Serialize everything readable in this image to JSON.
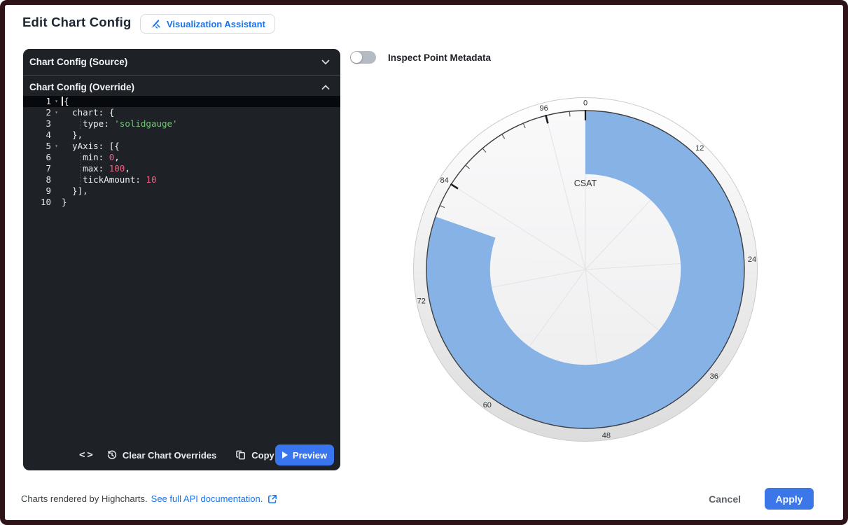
{
  "header": {
    "title": "Edit Chart Config",
    "assistant_button": "Visualization Assistant"
  },
  "editor": {
    "source_section": {
      "title": "Chart Config (Source)",
      "state": "collapsed"
    },
    "override_section": {
      "title": "Chart Config (Override)",
      "state": "expanded"
    },
    "code_lines": [
      {
        "num": "1",
        "fold": true,
        "active": true,
        "cursor": true,
        "segs": [
          {
            "c": "p",
            "t": "{"
          }
        ]
      },
      {
        "num": "2",
        "fold": true,
        "segs": [
          {
            "c": "p",
            "t": "  chart: {"
          }
        ]
      },
      {
        "num": "3",
        "guide": true,
        "segs": [
          {
            "c": "p",
            "t": "    type: "
          },
          {
            "c": "s",
            "t": "'solidgauge'"
          }
        ]
      },
      {
        "num": "4",
        "segs": [
          {
            "c": "p",
            "t": "  },"
          }
        ]
      },
      {
        "num": "5",
        "fold": true,
        "segs": [
          {
            "c": "p",
            "t": "  yAxis: [{"
          }
        ]
      },
      {
        "num": "6",
        "guide": true,
        "segs": [
          {
            "c": "p",
            "t": "    min: "
          },
          {
            "c": "n",
            "t": "0"
          },
          {
            "c": "p",
            "t": ","
          }
        ]
      },
      {
        "num": "7",
        "guide": true,
        "segs": [
          {
            "c": "p",
            "t": "    max: "
          },
          {
            "c": "n",
            "t": "100"
          },
          {
            "c": "p",
            "t": ","
          }
        ]
      },
      {
        "num": "8",
        "guide": true,
        "segs": [
          {
            "c": "p",
            "t": "    tickAmount: "
          },
          {
            "c": "n",
            "t": "10"
          }
        ]
      },
      {
        "num": "9",
        "segs": [
          {
            "c": "p",
            "t": "  }],"
          }
        ]
      },
      {
        "num": "10",
        "segs": [
          {
            "c": "p",
            "t": "}"
          }
        ]
      }
    ],
    "toolbar": {
      "clear_label": "Clear Chart Overrides",
      "copy_label": "Copy",
      "preview_label": "Preview"
    }
  },
  "inspect_toggle": {
    "label": "Inspect Point Metadata",
    "state": "off"
  },
  "chart_data": {
    "type": "solidgauge",
    "title": "CSAT",
    "series": [
      {
        "name": "CSAT",
        "value": 80.4
      }
    ],
    "yAxis": {
      "min": 0,
      "max": 100,
      "tick_labels": [
        0,
        12,
        24,
        36,
        48,
        60,
        72,
        84,
        96
      ],
      "tick_interval": 12,
      "minor_tick_interval": 2.4
    },
    "pane": {
      "start_angle": 0,
      "end_angle": 360,
      "inner_radius_pct": 60
    },
    "value_color": "#87b2e6",
    "grid": true,
    "legend": "none"
  },
  "footer": {
    "note": "Charts rendered by Highcharts.",
    "link": "See full API documentation.",
    "cancel_label": "Cancel",
    "apply_label": "Apply"
  },
  "colors": {
    "accent_blue": "#1a73e8",
    "action_blue": "#3b77e9",
    "panel_dark": "#1e2227",
    "frame": "#2e1418"
  }
}
